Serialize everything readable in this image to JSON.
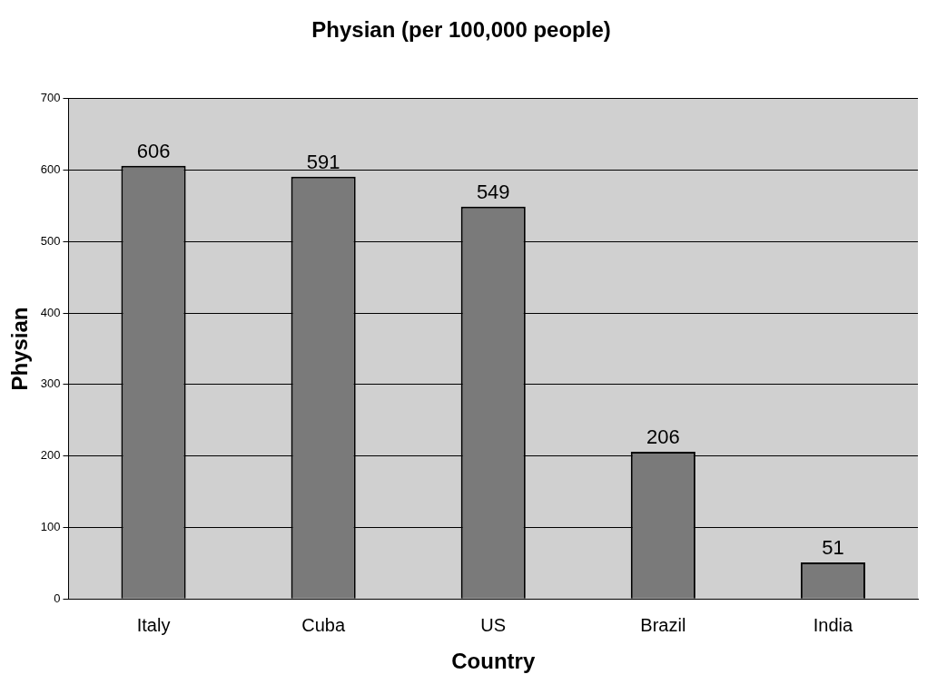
{
  "chart_data": {
    "type": "bar",
    "title": "Physian (per 100,000 people)",
    "xlabel": "Country",
    "ylabel": "Physian",
    "categories": [
      "Italy",
      "Cuba",
      "US",
      "Brazil",
      "India"
    ],
    "values": [
      606,
      591,
      549,
      206,
      51
    ],
    "color": "#7a7a7a",
    "ylim": [
      0,
      700
    ],
    "yticks": [
      0,
      100,
      200,
      300,
      400,
      500,
      600,
      700
    ],
    "grid": "y",
    "data_labels": true,
    "legend": false
  }
}
